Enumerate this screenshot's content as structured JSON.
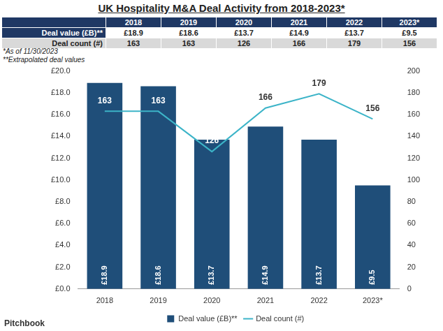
{
  "chart_data": {
    "type": "bar",
    "title": "UK Hospitality M&A Deal Activity from 2018-2023*",
    "categories": [
      "2018",
      "2019",
      "2020",
      "2021",
      "2022",
      "2023*"
    ],
    "series": [
      {
        "name": "Deal value (£B)**",
        "type": "bar",
        "color": "#1f4e79",
        "values": [
          18.9,
          18.6,
          13.7,
          14.9,
          13.7,
          9.5
        ],
        "value_labels": [
          "£18.9",
          "£18.6",
          "£13.7",
          "£14.9",
          "£13.7",
          "£9.5"
        ],
        "data_labels": true
      },
      {
        "name": "Deal count (#)",
        "type": "line",
        "axis": "y2",
        "color": "#3cb4c8",
        "values": [
          163,
          163,
          126,
          166,
          179,
          156
        ],
        "data_labels": true,
        "marker": "none"
      }
    ],
    "ylim": [
      0,
      20
    ],
    "yticks": [
      {
        "value": 0,
        "label": "£0.0"
      },
      {
        "value": 2,
        "label": "£2.0"
      },
      {
        "value": 4,
        "label": "£4.0"
      },
      {
        "value": 6,
        "label": "£6.0"
      },
      {
        "value": 8,
        "label": "£8.0"
      },
      {
        "value": 10,
        "label": "£10.0"
      },
      {
        "value": 12,
        "label": "£12.0"
      },
      {
        "value": 14,
        "label": "£14.0"
      },
      {
        "value": 16,
        "label": "£16.0"
      },
      {
        "value": 18,
        "label": "£18.0"
      },
      {
        "value": 20,
        "label": "£20.0"
      }
    ],
    "y2lim": [
      0,
      200
    ],
    "y2ticks": [
      0,
      20,
      40,
      60,
      80,
      100,
      120,
      140,
      160,
      180,
      200
    ],
    "grid": false,
    "legend": "bottom"
  },
  "table": {
    "columns": [
      "2018",
      "2019",
      "2020",
      "2021",
      "2022",
      "2023*"
    ],
    "rows": [
      {
        "label": "Deal value (£B)**",
        "cells": [
          "£18.9",
          "£18.6",
          "£13.7",
          "£14.9",
          "£13.7",
          "£9.5"
        ]
      },
      {
        "label": "Deal count (#)",
        "cells": [
          "163",
          "163",
          "126",
          "166",
          "179",
          "156"
        ]
      }
    ]
  },
  "notes": [
    "*As of 11/30/2023",
    "**Extrapolated deal values"
  ],
  "source": "Pitchbook"
}
